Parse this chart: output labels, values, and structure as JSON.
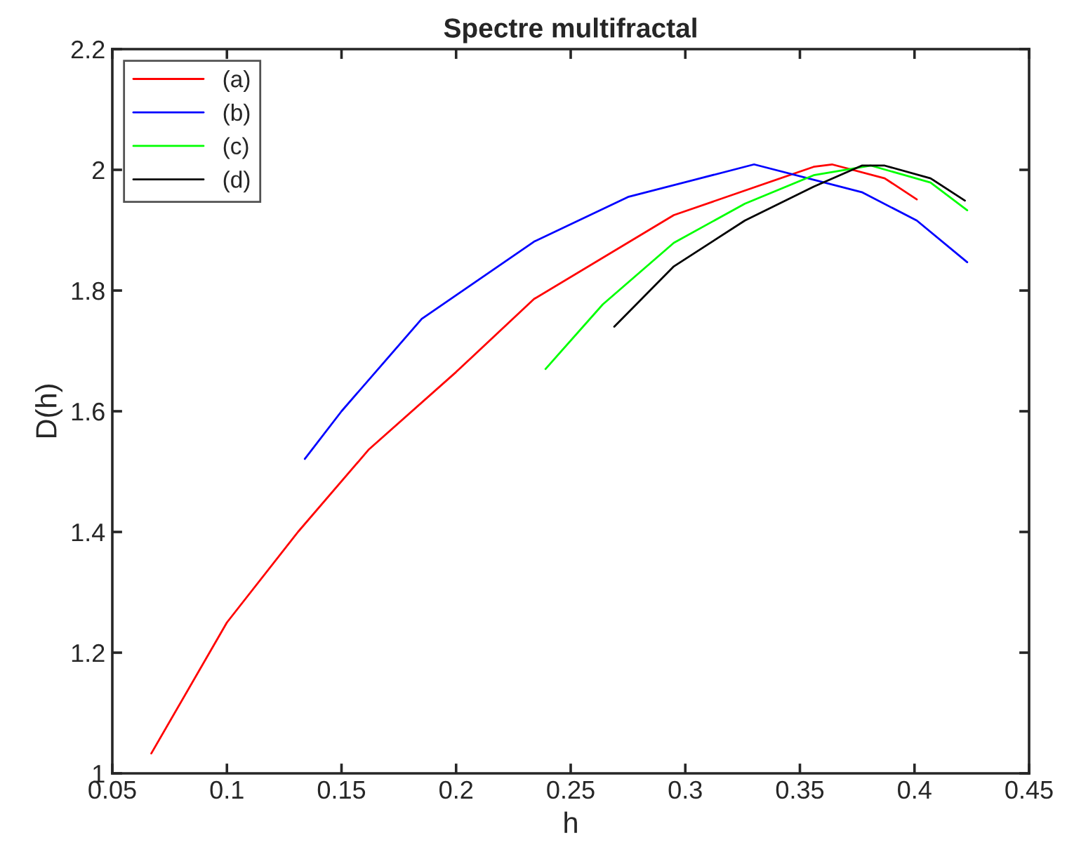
{
  "chart_data": {
    "type": "line",
    "title": "Spectre multifractal",
    "xlabel": "h",
    "ylabel": "D(h)",
    "xlim": [
      0.05,
      0.45
    ],
    "xticks": [
      0.05,
      0.1,
      0.15,
      0.2,
      0.25,
      0.3,
      0.35,
      0.4,
      0.45
    ],
    "ylim": [
      1,
      2.2
    ],
    "yticks": [
      1,
      1.2,
      1.4,
      1.6,
      1.8,
      2,
      2.2
    ],
    "grid": false,
    "legend": "top left",
    "marker": "none",
    "line_style": "solid",
    "series": [
      {
        "name": "(a)",
        "color": "#ff0000",
        "x": [
          0.067,
          0.1,
          0.131,
          0.162,
          0.2,
          0.234,
          0.295,
          0.356,
          0.364,
          0.387,
          0.401
        ],
        "values": [
          1.033,
          1.25,
          1.4,
          1.537,
          1.665,
          1.786,
          1.925,
          2.005,
          2.009,
          1.986,
          1.951
        ]
      },
      {
        "name": "(b)",
        "color": "#0000ff",
        "x": [
          0.134,
          0.15,
          0.185,
          0.234,
          0.275,
          0.33,
          0.377,
          0.401,
          0.423
        ],
        "values": [
          1.521,
          1.6,
          1.753,
          1.881,
          1.955,
          2.009,
          1.963,
          1.916,
          1.847
        ]
      },
      {
        "name": "(c)",
        "color": "#00ff00",
        "x": [
          0.239,
          0.264,
          0.295,
          0.326,
          0.356,
          0.381,
          0.407,
          0.423
        ],
        "values": [
          1.67,
          1.777,
          1.879,
          1.944,
          1.991,
          2.007,
          1.979,
          1.933
        ]
      },
      {
        "name": "(d)",
        "color": "#000000",
        "x": [
          0.269,
          0.295,
          0.326,
          0.356,
          0.377,
          0.387,
          0.407,
          0.422
        ],
        "values": [
          1.74,
          1.84,
          1.916,
          1.972,
          2.007,
          2.007,
          1.986,
          1.949
        ]
      }
    ]
  }
}
